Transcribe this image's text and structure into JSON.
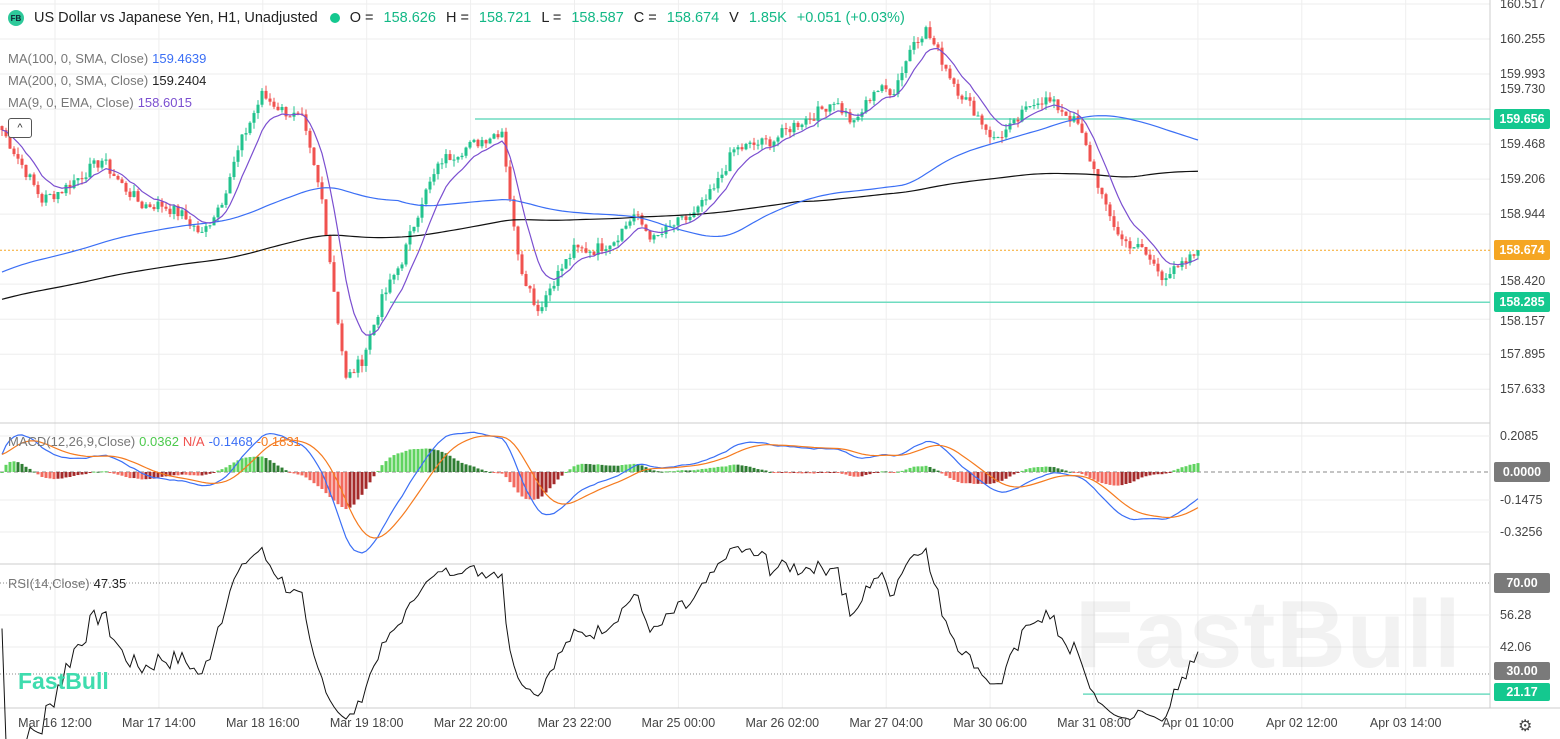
{
  "header": {
    "logo": "FB",
    "title": "US Dollar vs Japanese Yen, H1, Unadjusted",
    "o_label": "O =",
    "o": "158.626",
    "h_label": "H =",
    "h": "158.721",
    "l_label": "L =",
    "l": "158.587",
    "c_label": "C =",
    "c": "158.674",
    "v_label": "V",
    "v": "1.85K",
    "change": "+0.051 (+0.03%)"
  },
  "indicators": {
    "ma100": {
      "label": "MA(100, 0, SMA, Close)",
      "value": "159.4639",
      "color": "#3b6ff5"
    },
    "ma200": {
      "label": "MA(200, 0, SMA, Close)",
      "value": "159.2404",
      "color": "#111111"
    },
    "ema9": {
      "label": "MA(9, 0, EMA, Close)",
      "value": "158.6015",
      "color": "#7b4fd0"
    },
    "macd": {
      "label": "MACD(12,26,9,Close)",
      "hist": "0.0362",
      "na": "N/A",
      "macd": "-0.1468",
      "signal": "-0.1831"
    },
    "rsi": {
      "label": "RSI(14,Close)",
      "value": "47.35"
    }
  },
  "collapse_icon": "^",
  "price_axis": [
    "160.517",
    "160.255",
    "159.993",
    "159.730",
    "159.468",
    "159.206",
    "158.944",
    "158.420",
    "158.157",
    "157.895",
    "157.633"
  ],
  "price_tags": {
    "resistance": "159.656",
    "last": "158.674",
    "support": "158.285"
  },
  "macd_axis": [
    "0.2085",
    "-0.1475",
    "-0.3256"
  ],
  "macd_zero": "0.0000",
  "rsi_axis": [
    "56.28",
    "42.06"
  ],
  "rsi_tags": {
    "upper": "70.00",
    "lower": "30.00",
    "level": "21.17"
  },
  "time_axis": [
    "Mar 16 12:00",
    "Mar 17 14:00",
    "Mar 18 16:00",
    "Mar 19 18:00",
    "Mar 22 20:00",
    "Mar 23 22:00",
    "Mar 25 00:00",
    "Mar 26 02:00",
    "Mar 27 04:00",
    "Mar 30 06:00",
    "Mar 31 08:00",
    "Apr 01 10:00",
    "Apr 02 12:00",
    "Apr 03 14:00"
  ],
  "watermark": "FastBull",
  "logo_text": "FastBull",
  "colors": {
    "up": "#22c38e",
    "down": "#f0524f",
    "accent": "#14c88f",
    "last": "#f5a623",
    "macd": "#3b6ff5",
    "signal": "#f57b1f",
    "hist_up": "#5fd35f",
    "hist_up_dark": "#2e7d32",
    "hist_down": "#f26a5f",
    "hist_down_dark": "#a52a2a"
  },
  "chart_data": {
    "type": "candlestick",
    "symbol": "USDJPY",
    "timeframe": "H1",
    "ylim": [
      157.5,
      160.55
    ],
    "price_path": [
      [
        0,
        159.574
      ],
      [
        5,
        159.312
      ],
      [
        10,
        159.05
      ],
      [
        15,
        159.125
      ],
      [
        20,
        159.237
      ],
      [
        25,
        159.349
      ],
      [
        30,
        159.162
      ],
      [
        35,
        159.013
      ],
      [
        40,
        159.013
      ],
      [
        45,
        158.938
      ],
      [
        50,
        158.788
      ],
      [
        55,
        159.05
      ],
      [
        60,
        159.499
      ],
      [
        65,
        159.836
      ],
      [
        70,
        159.724
      ],
      [
        75,
        159.649
      ],
      [
        80,
        159.05
      ],
      [
        83,
        158.376
      ],
      [
        86,
        157.703
      ],
      [
        90,
        157.852
      ],
      [
        95,
        158.301
      ],
      [
        100,
        158.601
      ],
      [
        105,
        159.05
      ],
      [
        110,
        159.349
      ],
      [
        115,
        159.424
      ],
      [
        120,
        159.499
      ],
      [
        125,
        159.574
      ],
      [
        128,
        158.825
      ],
      [
        130,
        158.526
      ],
      [
        134,
        158.227
      ],
      [
        138,
        158.451
      ],
      [
        143,
        158.676
      ],
      [
        148,
        158.676
      ],
      [
        153,
        158.751
      ],
      [
        158,
        158.938
      ],
      [
        163,
        158.751
      ],
      [
        168,
        158.863
      ],
      [
        173,
        158.938
      ],
      [
        178,
        159.125
      ],
      [
        183,
        159.424
      ],
      [
        188,
        159.462
      ],
      [
        193,
        159.499
      ],
      [
        198,
        159.611
      ],
      [
        203,
        159.686
      ],
      [
        208,
        159.798
      ],
      [
        213,
        159.611
      ],
      [
        218,
        159.873
      ],
      [
        223,
        159.873
      ],
      [
        228,
        160.248
      ],
      [
        231,
        160.322
      ],
      [
        235,
        160.098
      ],
      [
        239,
        159.873
      ],
      [
        243,
        159.724
      ],
      [
        248,
        159.499
      ],
      [
        253,
        159.611
      ],
      [
        258,
        159.798
      ],
      [
        261,
        159.798
      ],
      [
        265,
        159.724
      ],
      [
        269,
        159.611
      ],
      [
        273,
        159.274
      ],
      [
        276,
        158.975
      ],
      [
        280,
        158.751
      ],
      [
        285,
        158.676
      ],
      [
        290,
        158.488
      ],
      [
        294,
        158.526
      ],
      [
        298,
        158.638
      ],
      [
        299,
        158.674
      ]
    ]
  }
}
